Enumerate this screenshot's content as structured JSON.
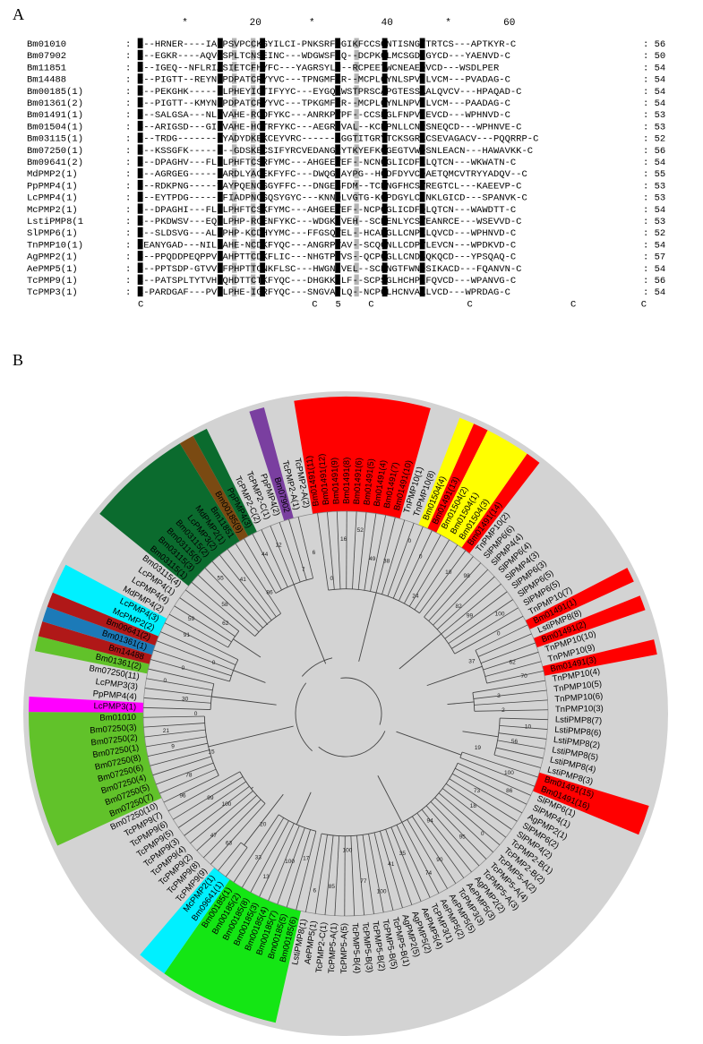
{
  "panel_a": {
    "label": "A",
    "ruler": [
      "*",
      "20",
      "*",
      "40",
      "*",
      "60"
    ],
    "rows": [
      {
        "name": "Bm01010",
        "seq": "C--HRNER----IADPSVPCCKGYILCI-PNKSRFQGIKFCCSGNTISNGYTRTCS---APTKYR-C",
        "len": "56"
      },
      {
        "name": "Bm07902",
        "seq": "C--EGKR----AQVQSPLTCNSEINC---WDGWSFEQ--DCPKGLMCSGD-GYCD---YAENVD-C",
        "len": "50"
      },
      {
        "name": "Bm11851",
        "seq": "C--IGEQ--NFLRIASIETCFHYFC---YAGRSYLM--RCPEETWCNEAEQVCD---WSDLPER",
        "len": "54"
      },
      {
        "name": "Bm14488",
        "seq": "C--PIGTT--REYNMPDPATCRYYVC---TPNGMFKR--MCPLGYNLSPVHLVCM---PVADAG-C",
        "len": "54"
      },
      {
        "name": "Bm00185(1)",
        "seq": "C--PEKGHK-----LLPHEYICTIFYYC---EYGQKWSTPRSCAPGTESSAALQVCV---HPAQAD-C",
        "len": "54"
      },
      {
        "name": "Bm01361(2)",
        "seq": "C--PIGTT--KMYNMPDPATCRYYVC---TPKGMFRR--MCPLGYNLNPVHLVCM---PAADAG-C",
        "len": "54"
      },
      {
        "name": "Bm01491(1)",
        "seq": "C--SALGSA---NLHVAHE-RCDFYKC---ANRKPVPF--CCSEGLFNPVIEVCD---WPHNVD-C",
        "len": "53"
      },
      {
        "name": "Bm01504(1)",
        "seq": "C--ARIGSD---GILVAHE-HCTRFYKC---AEGRPVAL--KCPPNLLCNPSNEQCD---WPHNVE-C",
        "len": "53"
      },
      {
        "name": "Bm03115(1)",
        "seq": "C--TRDG-------LYADYDKEKCEYVRC------SGGTITGRYTCKSGRSCSEVAGACV---PQQRRP-C",
        "len": "52"
      },
      {
        "name": "Bm07250(1)",
        "seq": "C--KSSGFK--------GDSKECSIFYRCVEDANGRYTKYEFKCGEGTVWDSNLEACN---HAWAVKK-C",
        "len": "56"
      },
      {
        "name": "Bm09641(2)",
        "seq": "C--DPAGHV---FLLLPHFTCSRFYMC---AHGEEVEF--NCNGGLICDFELQTCN---WKWATN-C",
        "len": "54"
      },
      {
        "name": "MdPMP2(1)",
        "seq": "C--AGRGEG-----FARDLYACEKFYFC---DWQGNAYPG--HCDFDYVCDAETQMCVTRYYADQV--C",
        "len": "55"
      },
      {
        "name": "PpPMP4(1)",
        "seq": "C--RDKPNG-----TAYPQENCSGYFFC---DNGEGFDM--TCENGFHCSVREGTCL---KAEEVP-C",
        "len": "53"
      },
      {
        "name": "LcPMP4(1)",
        "seq": "C--EYTPDG------FIADPNCSQSYGYC---KNNQLVGTG-KCPDGYLCNNKLGICD---SPANVK-C",
        "len": "53"
      },
      {
        "name": "McPMP2(1)",
        "seq": "C--DPAGHI---FLLLPHFTCSKFYMC---AHGEEVEF--NCPGGLICDFQLQTCN---WAWDTT-C",
        "len": "54"
      },
      {
        "name": "LstiPMP8(1",
        "seq": "C--PKDWSV---EQLLPHP-RCENFYKC---WDGKLVEH--SCPENLYCSVEANRCE---WSEVVD-C",
        "len": "53"
      },
      {
        "name": "SlPMP6(1)",
        "seq": "C--SLDSVG---ALLPHP-KCDHYYMC---FFGSQVEL--HCADGLLCNPKLQVCD---WPHNVD-C",
        "len": "52"
      },
      {
        "name": "TnPMP10(1)",
        "seq": "CEANYGAD---NILIAHE-NCDKFYQC---ANGRPVAV--SCQGNLLCDPVLEVCN---WPDKVD-C",
        "len": "54"
      },
      {
        "name": "AgPMP2(1)",
        "seq": "C--PPQDDPEQPPVLAHPTTCDKFLIC---NHGTPVVS--QCPGGLLCNDSQKQCD---YPSQAQ-C",
        "len": "57"
      },
      {
        "name": "AePMP5(1)",
        "seq": "C--PPTSDP-GTVVHFPHPTTCNKFLSC---HWGNLVEL--SCPNGTFWNDSIKACD---FQANVN-C",
        "len": "54"
      },
      {
        "name": "TcPMP9(1)",
        "seq": "C--PATSPLTYTVHLQHDTTCTKFYQC---DHGKKILF--SCPSGLHCHPLFQVCD---WPANVG-C",
        "len": "56"
      },
      {
        "name": "TcPMP3(1)",
        "seq": "C-PARDGAF---PVYLPHE-IGRFYQC---SNGVAYLQ--NCPGLHCNVAKLVCD---WPRDAG-C",
        "len": "54"
      }
    ],
    "consensus": [
      "C",
      "C",
      "5",
      "C",
      "C",
      "C",
      "C"
    ]
  },
  "panel_b": {
    "label": "B",
    "leaves": [
      "Bm01491(11)",
      "Bm01491(12)",
      "Bm01491(9)",
      "Bm01491(8)",
      "Bm01491(6)",
      "Bm01491(5)",
      "Bm01491(4)",
      "Bm01491(7)",
      "Bm01491(10)",
      "TnPMP10(1)",
      "TnPMP10(8)",
      "Bm01504(4)",
      "Bm01491(13)",
      "Bm01504(2)",
      "Bm01504(1)",
      "Bm01504(3)",
      "Bm01491(14)",
      "TnPMP10(2)",
      "SlPMP6(6)",
      "SlPMP4(4)",
      "SlPMP6(4)",
      "SlPMP4(3)",
      "SlPMP6(3)",
      "SlPMP6(5)",
      "SlPMP6(5)",
      "TnPMP10(7)",
      "Bm01491(1)",
      "LstiPMP8(8)",
      "Bm01491(2)",
      "TnPMP10(10)",
      "TnPMP10(9)",
      "Bm01491(3)",
      "TnPMP10(4)",
      "TnPMP10(5)",
      "TnPMP10(6)",
      "TnPMP10(3)",
      "LstiPMP8(7)",
      "LstiPMP8(6)",
      "LstiPMP8(2)",
      "LstiPMP8(5)",
      "LstiPMP8(4)",
      "LstiPMP8(3)",
      "Bm01491(15)",
      "Bm01491(16)",
      "SlPMP6(1)",
      "SlPMP4(1)",
      "AgPMP2(1)",
      "SlPMP6(2)",
      "SlPMP4(2)",
      "TcPMP2-B(1)",
      "TcPMP2-B(2)",
      "TcPMP5-A(2)",
      "TcPMP5-A(4)",
      "TcPMP5-A(3)",
      "AgPMP2(2)",
      "AePMP5(3)",
      "TcPMP3(3)",
      "AePMP5(5)",
      "AePMP5(2)",
      "TcPMP3(1)",
      "AePMP5(4)",
      "AgPMP5(2)",
      "AgPMP2(5)",
      "TcPMP5-B(1)",
      "TcPMP5-B(5)",
      "TcPMP5-B(2)",
      "TcPMP5-B(3)",
      "TcPMP5-B(4)",
      "TcPMP5-A(5)",
      "TcPMP5-A(1)",
      "TcPMP2-C(1)",
      "AePMP5(1)",
      "LstiPMP8(1)",
      "Bm00185(6)",
      "Bm00185(5)",
      "Bm00185(7)",
      "Bm00185(4)",
      "Bm00185(3)",
      "Bm00185(8)",
      "Bm00185(2)",
      "Bm00185(1)",
      "Bm09641(1)",
      "McPMP2(1)",
      "TcPMP9(9)",
      "TcPMP9(8)",
      "TcPMP9(2)",
      "TcPMP9(4)",
      "TcPMP9(3)",
      "TcPMP9(5)",
      "TcPMP9(6)",
      "TcPMP9(7)",
      "Bm07250(10)",
      "Bm07250(7)",
      "Bm07250(5)",
      "Bm07250(4)",
      "Bm07250(6)",
      "Bm07250(8)",
      "Bm07250(1)",
      "Bm07250(2)",
      "Bm07250(3)",
      "Bm01010",
      "LcPMP3(1)",
      "PpPMP4(4)",
      "LcPMP3(3)",
      "Bm07250(11)",
      "Bm01361(2)",
      "Bm14488",
      "Bm01361(1)",
      "Bm09641(2)",
      "McPMP2(2)",
      "LcPMP4(3)",
      "MdPMP4(2)",
      "LcPMP4(4)",
      "LcPMP4(1)",
      "Bm03115(4)",
      "Bm03115(1)",
      "Bm03115(3)",
      "Bm03115(5)",
      "Bm03115(2)",
      "LcPMP3(2)",
      "MdPMP2(1)",
      "Bm11851",
      "Bm00185(9)",
      "PpPMP4(3)",
      "TcPMP2-C(2)",
      "TcPMP2-C(1)",
      "PpPMP4(2)",
      "Bm07902",
      "TcPMP2-A(1)",
      "TcPMP2-A(2)"
    ],
    "bootstrap": [
      "0",
      "16",
      "52",
      "49",
      "38",
      "0",
      "0",
      "24",
      "10",
      "98",
      "82",
      "99",
      "100",
      "0",
      "37",
      "62",
      "70",
      "3",
      "2",
      "10",
      "56",
      "19",
      "100",
      "86",
      "73",
      "18",
      "0",
      "95",
      "94",
      "90",
      "74",
      "35",
      "41",
      "100",
      "77",
      "100",
      "85",
      "6",
      "17",
      "100",
      "13",
      "33",
      "20",
      "63",
      "47",
      "100",
      "99",
      "96",
      "78",
      "15",
      "9",
      "21",
      "0",
      "30",
      "0",
      "0",
      "0",
      "91",
      "59",
      "62",
      "58",
      "55",
      "41",
      "86",
      "44",
      "12",
      "7",
      "6"
    ],
    "clade_colors": {
      "red": "#ff0000",
      "yellow": "#ffff00",
      "dark_green": "#0b6b2e",
      "brown": "#7a4a12",
      "purple": "#7a3fa0",
      "cyan": "#00f0ff",
      "dark_red": "#b01818",
      "blue": "#1c7ab8",
      "light_green": "#61c22a",
      "magenta": "#ff00ff",
      "bright_green": "#14e614",
      "gray": "#d3d3d3"
    }
  }
}
